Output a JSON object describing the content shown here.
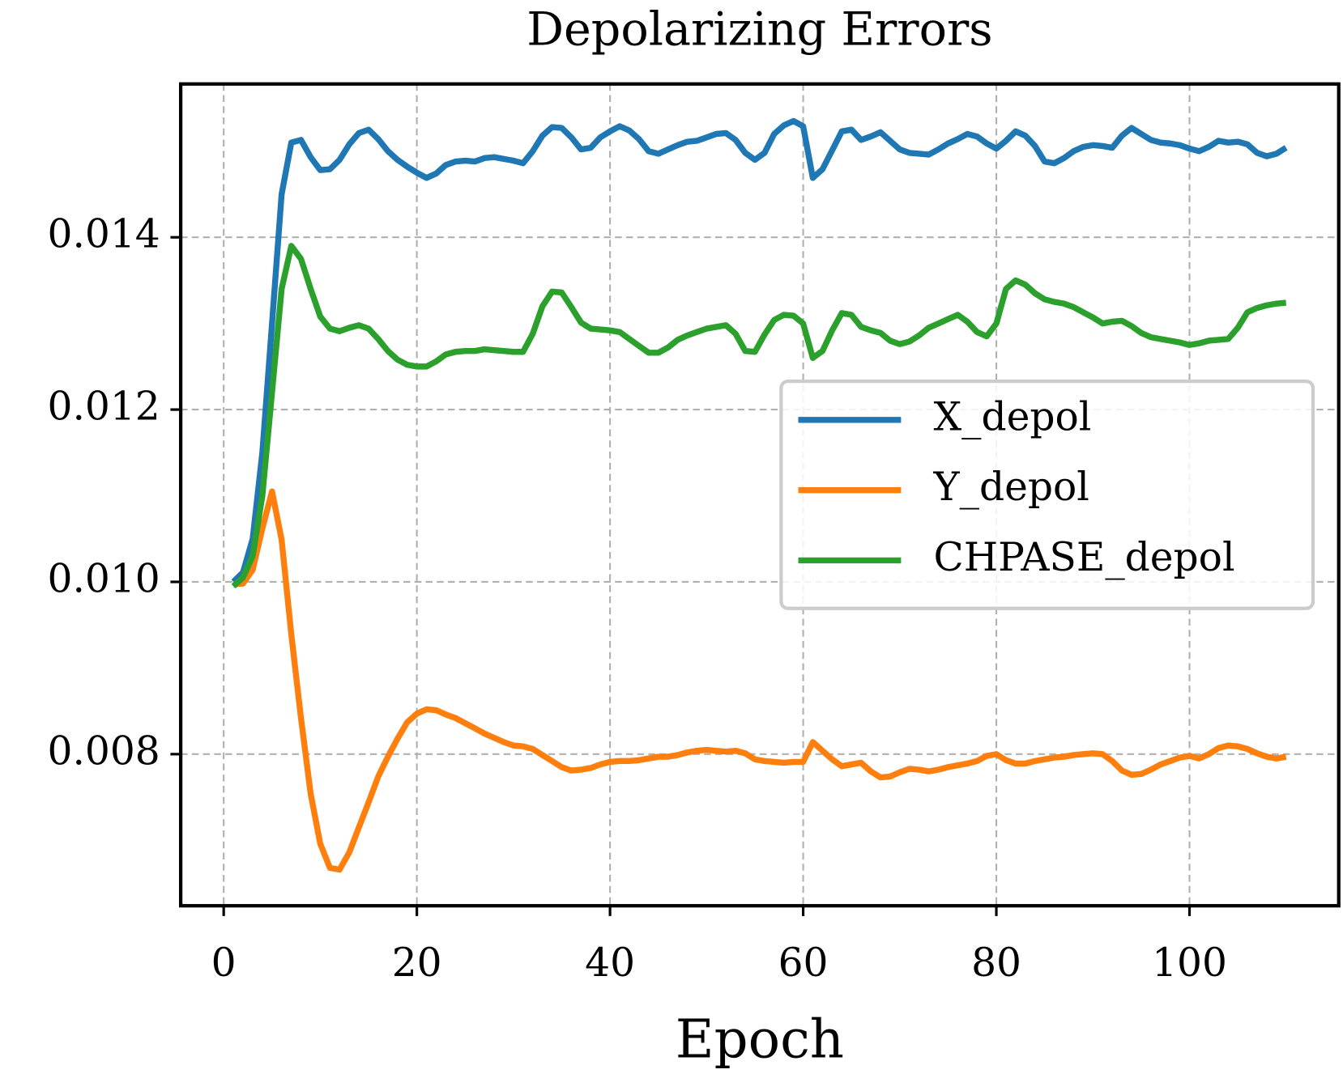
{
  "chart_data": {
    "type": "line",
    "title": "Depolarizing Errors",
    "x_label": "Epoch",
    "x": [
      1,
      2,
      3,
      4,
      5,
      6,
      7,
      8,
      9,
      10,
      11,
      12,
      13,
      14,
      15,
      16,
      17,
      18,
      19,
      20,
      21,
      22,
      23,
      24,
      25,
      26,
      27,
      28,
      29,
      30,
      31,
      32,
      33,
      34,
      35,
      36,
      37,
      38,
      39,
      40,
      41,
      42,
      43,
      44,
      45,
      46,
      47,
      48,
      49,
      50,
      51,
      52,
      53,
      54,
      55,
      56,
      57,
      58,
      59,
      60,
      61,
      62,
      63,
      64,
      65,
      66,
      67,
      68,
      69,
      70,
      71,
      72,
      73,
      74,
      75,
      76,
      77,
      78,
      79,
      80,
      81,
      82,
      83,
      84,
      85,
      86,
      87,
      88,
      89,
      90,
      91,
      92,
      93,
      94,
      95,
      96,
      97,
      98,
      99,
      100,
      101,
      102,
      103,
      104,
      105,
      106,
      107,
      108,
      109,
      110
    ],
    "series": [
      {
        "name": "X_depol",
        "color": "#1f77b4",
        "values": [
          0.01,
          0.01011,
          0.0105,
          0.0115,
          0.013,
          0.0145,
          0.0151,
          0.01513,
          0.01493,
          0.01478,
          0.01479,
          0.0149,
          0.01508,
          0.01521,
          0.01525,
          0.01514,
          0.015,
          0.0149,
          0.01482,
          0.01475,
          0.01469,
          0.01474,
          0.01484,
          0.01488,
          0.01489,
          0.01488,
          0.01492,
          0.01493,
          0.01491,
          0.01489,
          0.01486,
          0.015,
          0.01518,
          0.01528,
          0.01527,
          0.01516,
          0.01502,
          0.01504,
          0.01516,
          0.01523,
          0.01529,
          0.01524,
          0.01514,
          0.015,
          0.01497,
          0.01502,
          0.01507,
          0.01511,
          0.01512,
          0.01516,
          0.0152,
          0.01521,
          0.01513,
          0.01498,
          0.0149,
          0.01498,
          0.0152,
          0.0153,
          0.01535,
          0.01529,
          0.01469,
          0.01479,
          0.01501,
          0.01523,
          0.01525,
          0.01513,
          0.01517,
          0.01522,
          0.01512,
          0.01502,
          0.01498,
          0.01497,
          0.01496,
          0.01502,
          0.01509,
          0.01514,
          0.0152,
          0.01517,
          0.01509,
          0.01503,
          0.01512,
          0.01523,
          0.01518,
          0.01506,
          0.01488,
          0.01486,
          0.01492,
          0.015,
          0.01505,
          0.01507,
          0.01506,
          0.01504,
          0.01518,
          0.01527,
          0.0152,
          0.01513,
          0.0151,
          0.01509,
          0.01507,
          0.01503,
          0.015,
          0.01505,
          0.01512,
          0.0151,
          0.01511,
          0.01508,
          0.01498,
          0.01494,
          0.01497,
          0.01504
        ]
      },
      {
        "name": "Y_depol",
        "color": "#ff7f0e",
        "values": [
          0.00997,
          0.00998,
          0.01014,
          0.01062,
          0.01105,
          0.01049,
          0.00939,
          0.00842,
          0.00754,
          0.00696,
          0.00668,
          0.00666,
          0.00686,
          0.00715,
          0.00744,
          0.00774,
          0.00797,
          0.00818,
          0.00837,
          0.00847,
          0.00852,
          0.00851,
          0.00846,
          0.00842,
          0.00836,
          0.0083,
          0.00824,
          0.00819,
          0.00814,
          0.0081,
          0.00809,
          0.00806,
          0.00799,
          0.00792,
          0.00785,
          0.00781,
          0.00782,
          0.00784,
          0.00788,
          0.00791,
          0.00792,
          0.00792,
          0.00793,
          0.00795,
          0.00797,
          0.00797,
          0.00799,
          0.00802,
          0.00804,
          0.00805,
          0.00804,
          0.00803,
          0.00804,
          0.00801,
          0.00794,
          0.00792,
          0.00791,
          0.0079,
          0.00791,
          0.00791,
          0.00814,
          0.00804,
          0.00794,
          0.00786,
          0.00788,
          0.0079,
          0.0078,
          0.00773,
          0.00774,
          0.00779,
          0.00783,
          0.00782,
          0.0078,
          0.00782,
          0.00785,
          0.00787,
          0.00789,
          0.00792,
          0.00798,
          0.008,
          0.00793,
          0.00789,
          0.00789,
          0.00792,
          0.00794,
          0.00796,
          0.00797,
          0.00799,
          0.008,
          0.00801,
          0.008,
          0.00792,
          0.00781,
          0.00776,
          0.00777,
          0.00782,
          0.00788,
          0.00792,
          0.00796,
          0.00798,
          0.00795,
          0.008,
          0.00807,
          0.0081,
          0.00809,
          0.00806,
          0.00801,
          0.00797,
          0.00795,
          0.00797
        ]
      },
      {
        "name": "CHPASE_depol",
        "color": "#2ca02c",
        "values": [
          0.00995,
          0.01005,
          0.0103,
          0.011,
          0.0122,
          0.0134,
          0.0139,
          0.01375,
          0.0134,
          0.01308,
          0.01294,
          0.01291,
          0.01295,
          0.01298,
          0.01294,
          0.01282,
          0.01268,
          0.01258,
          0.01252,
          0.0125,
          0.0125,
          0.01256,
          0.01264,
          0.01267,
          0.01268,
          0.01268,
          0.0127,
          0.01269,
          0.01268,
          0.01267,
          0.01267,
          0.01288,
          0.0132,
          0.01337,
          0.01336,
          0.01319,
          0.01301,
          0.01294,
          0.01293,
          0.01292,
          0.0129,
          0.01282,
          0.01274,
          0.01266,
          0.01266,
          0.01272,
          0.01281,
          0.01286,
          0.0129,
          0.01294,
          0.01296,
          0.01298,
          0.01288,
          0.01268,
          0.01267,
          0.01287,
          0.01304,
          0.0131,
          0.01309,
          0.013,
          0.0126,
          0.01268,
          0.01292,
          0.01312,
          0.0131,
          0.01296,
          0.01292,
          0.01289,
          0.0128,
          0.01276,
          0.01279,
          0.01286,
          0.01295,
          0.013,
          0.01305,
          0.0131,
          0.01302,
          0.0129,
          0.01285,
          0.013,
          0.0134,
          0.0135,
          0.01345,
          0.01335,
          0.01328,
          0.01325,
          0.01323,
          0.01319,
          0.01313,
          0.01307,
          0.013,
          0.01302,
          0.01303,
          0.01297,
          0.01289,
          0.01284,
          0.01282,
          0.0128,
          0.01278,
          0.01275,
          0.01277,
          0.0128,
          0.01281,
          0.01282,
          0.01295,
          0.01313,
          0.01318,
          0.01321,
          0.01323,
          0.01324
        ]
      }
    ],
    "xlim": [
      -4.45,
      115.45
    ],
    "xticks": [
      0,
      20,
      40,
      60,
      80,
      100
    ],
    "ylim": [
      0.00624,
      0.01578
    ],
    "yticks": [
      0.008,
      {
        "value": 0.01,
        "label": "0.010"
      },
      0.012,
      0.014
    ],
    "grid": true,
    "legend": "center right"
  }
}
